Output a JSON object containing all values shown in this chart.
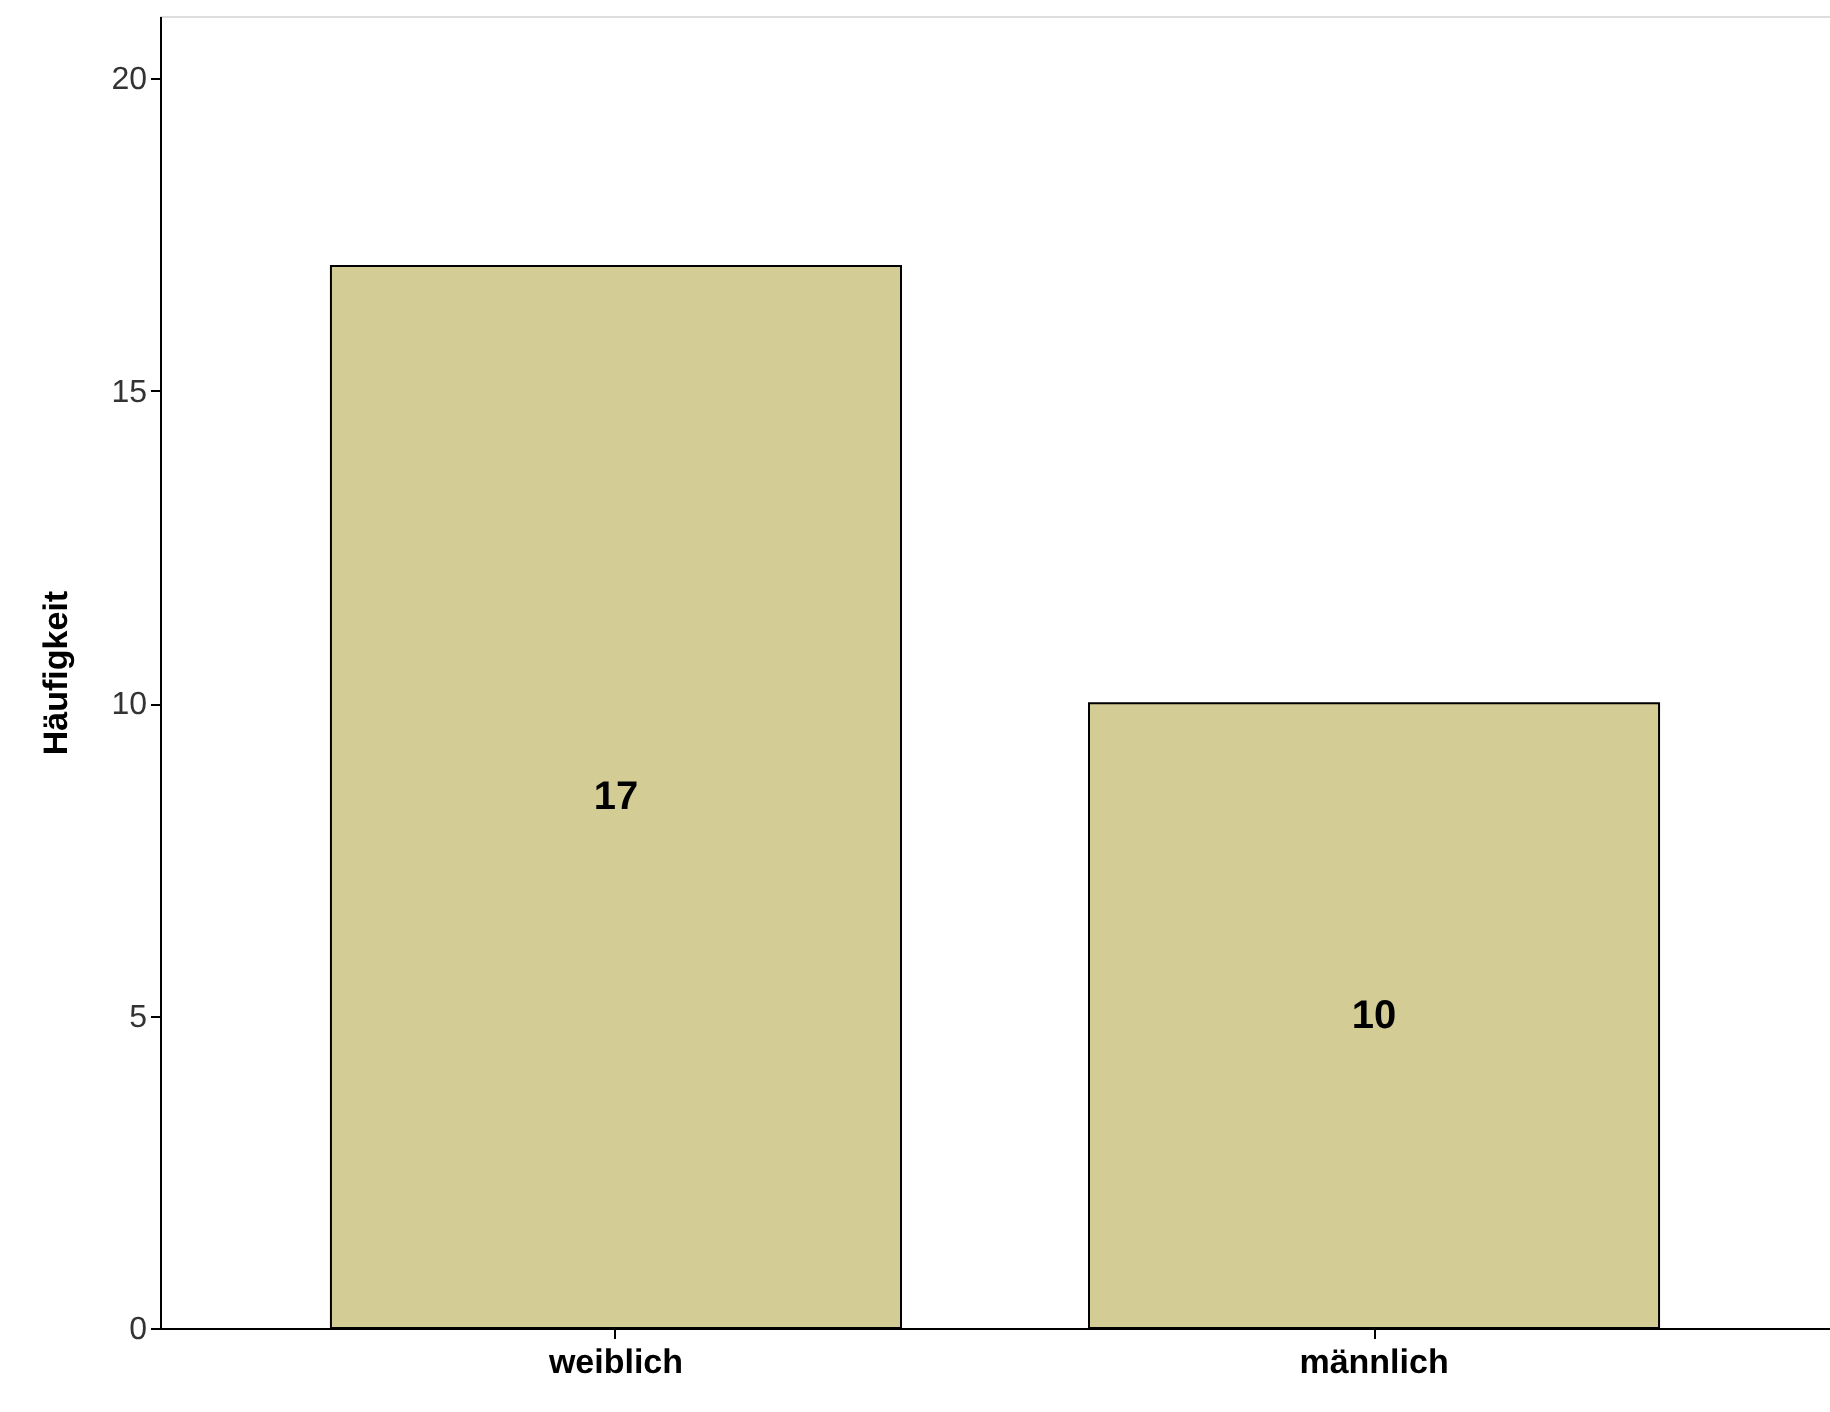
{
  "chart_data": {
    "type": "bar",
    "ylabel": "Häufigkeit",
    "categories": [
      "weiblich",
      "männlich"
    ],
    "values": [
      17,
      10
    ],
    "color": "#d3cd95",
    "ylim": [
      0,
      21
    ],
    "yticks": [
      0,
      5,
      10,
      15,
      20
    ],
    "grid": false,
    "data_labels": true
  }
}
